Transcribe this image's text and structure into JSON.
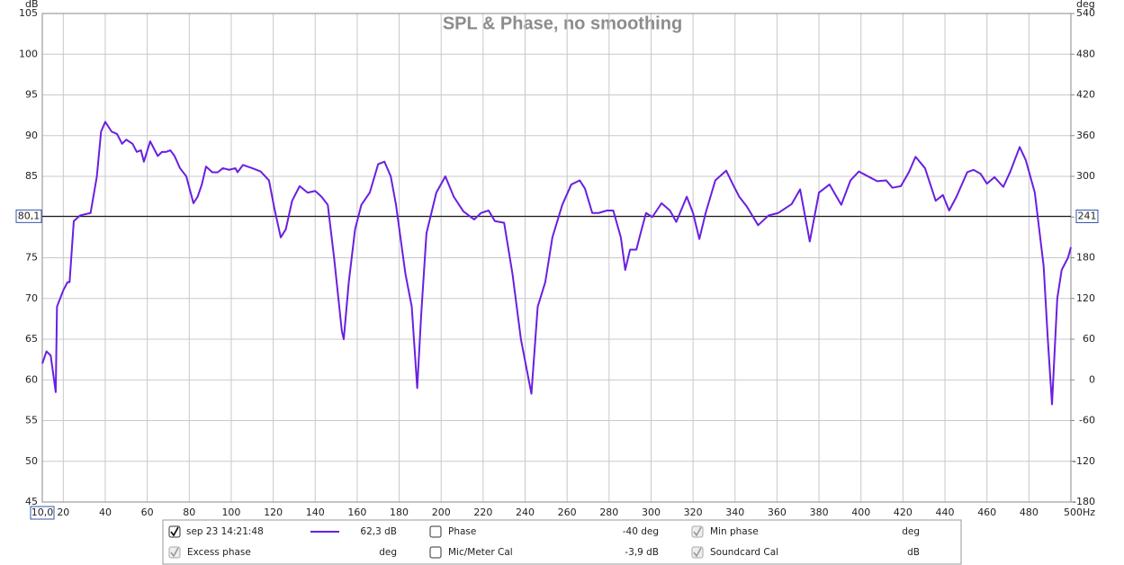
{
  "chart_data": {
    "type": "line",
    "title": "SPL & Phase, no smoothing",
    "y_unit": "dB",
    "y2_unit": "deg",
    "xlim": [
      10,
      500
    ],
    "xticks": [
      20,
      40,
      60,
      80,
      100,
      120,
      140,
      160,
      180,
      200,
      220,
      240,
      260,
      280,
      300,
      320,
      340,
      360,
      380,
      400,
      420,
      440,
      460,
      480,
      {
        "value": 500,
        "label": "500Hz"
      }
    ],
    "ylim": [
      45,
      105
    ],
    "yticks": [
      45,
      50,
      55,
      60,
      65,
      70,
      75,
      80,
      85,
      90,
      95,
      100,
      105
    ],
    "y2lim": [
      -180,
      540
    ],
    "y2ticks": [
      -180,
      -120,
      -60,
      0,
      60,
      120,
      180,
      240,
      300,
      360,
      420,
      480,
      540
    ],
    "grid": true,
    "cursor": {
      "x": {
        "value": 10,
        "label": "10,0"
      },
      "y": {
        "value": 80.1,
        "label": "80,1"
      },
      "y2": 241
    },
    "x": [
      10,
      12,
      14,
      16.4,
      17,
      20,
      22,
      23,
      25,
      28,
      33,
      36,
      38,
      40,
      43,
      45.6,
      48,
      50,
      53,
      55,
      57,
      58.4,
      61.4,
      65,
      67,
      69,
      71,
      73,
      75.6,
      78.6,
      82,
      84,
      86,
      88,
      91,
      93.6,
      96,
      99,
      102,
      103,
      105.6,
      110,
      114,
      118,
      120.6,
      123.6,
      126,
      129,
      132.6,
      136.4,
      140,
      143,
      146,
      149,
      152.7,
      153.6,
      156,
      159,
      162,
      166,
      170,
      173,
      176,
      178.5,
      183,
      186,
      188.6,
      190.5,
      193,
      197.7,
      202,
      206,
      210.6,
      215.7,
      219,
      222.6,
      225.6,
      230,
      234,
      238,
      243,
      246,
      249.6,
      253,
      257.7,
      262,
      266,
      268.5,
      272,
      275,
      279,
      282,
      285.6,
      287.7,
      290,
      293,
      295,
      297.6,
      300.6,
      305,
      309,
      312,
      317,
      320,
      323,
      326,
      330.6,
      335.8,
      339,
      342,
      345.6,
      351,
      356,
      360.6,
      367,
      371,
      375.6,
      380,
      385,
      390.6,
      395,
      399,
      404.8,
      407.7,
      412,
      415,
      419,
      422.8,
      426,
      430.5,
      435.6,
      439,
      442,
      445.5,
      450.6,
      453.6,
      457,
      460,
      463.6,
      467.8,
      471,
      475.6,
      478.5,
      482.8,
      487,
      489,
      491,
      493.5,
      495.6,
      498.6,
      500
    ],
    "series": [
      {
        "name": "sep 23 14:21:48",
        "color": "#6a1fe0",
        "values": [
          62,
          63.5,
          63,
          58.5,
          69,
          71,
          72,
          72,
          79.5,
          80.2,
          80.5,
          85,
          90.5,
          91.7,
          90.5,
          90.2,
          89,
          89.5,
          89,
          88,
          88.2,
          86.8,
          89.3,
          87.5,
          88,
          88,
          88.2,
          87.5,
          86,
          85,
          81.7,
          82.5,
          84,
          86.2,
          85.5,
          85.5,
          86,
          85.8,
          86,
          85.5,
          86.4,
          86,
          85.6,
          84.5,
          81,
          77.5,
          78.5,
          82,
          83.8,
          83,
          83.2,
          82.5,
          81.5,
          75,
          66,
          65,
          72,
          78.5,
          81.5,
          83,
          86.5,
          86.8,
          85,
          81.5,
          73,
          69,
          59,
          68,
          78,
          83,
          85,
          82.5,
          80.7,
          79.7,
          80.5,
          80.8,
          79.5,
          79.3,
          73,
          65,
          58.3,
          69,
          72,
          77.5,
          81.5,
          84,
          84.5,
          83.5,
          80.5,
          80.5,
          80.8,
          80.8,
          77.5,
          73.5,
          76,
          76,
          78,
          80.5,
          80,
          81.7,
          80.8,
          79.4,
          82.5,
          80.5,
          77.3,
          80.5,
          84.5,
          85.7,
          84,
          82.5,
          81.3,
          79,
          80.2,
          80.5,
          81.6,
          83.4,
          77,
          83,
          84,
          81.5,
          84.5,
          85.6,
          84.8,
          84.4,
          84.5,
          83.6,
          83.8,
          85.5,
          87.4,
          86,
          82,
          82.7,
          80.8,
          82.5,
          85.5,
          85.8,
          85.3,
          84.1,
          84.9,
          83.7,
          85.5,
          88.6,
          87,
          83,
          74,
          65,
          57,
          70,
          73.5,
          75,
          76.3
        ]
      }
    ],
    "series_value_text": "62,3 dB",
    "legend_items": [
      {
        "label": "Phase",
        "value_text": "-40 deg",
        "checked": false,
        "enabled": true
      },
      {
        "label": "Min phase",
        "value_text": "deg",
        "checked": true,
        "enabled": false
      },
      {
        "label": "Excess phase",
        "value_text": "deg",
        "checked": true,
        "enabled": false
      },
      {
        "label": "Mic/Meter Cal",
        "value_text": "-3,9 dB",
        "checked": false,
        "enabled": true
      },
      {
        "label": "Soundcard Cal",
        "value_text": "dB",
        "checked": true,
        "enabled": false
      }
    ]
  }
}
